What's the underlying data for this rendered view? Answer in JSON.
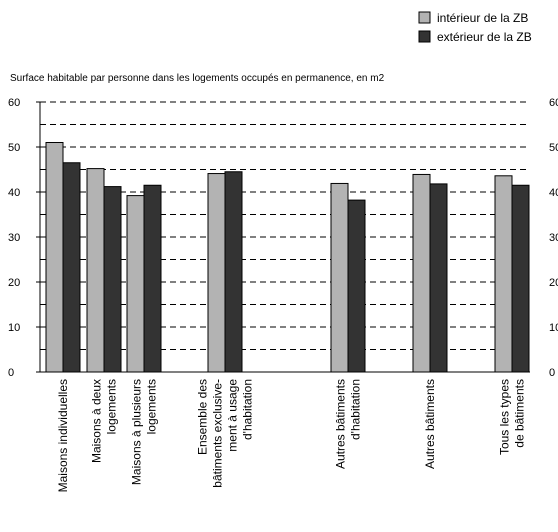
{
  "chart_data": {
    "type": "bar",
    "title": "Surface habitable par personne dans les logements occupés en permanence, en m2",
    "categories": [
      [
        "Maisons individuelles"
      ],
      [
        "Maisons à deux",
        "logements"
      ],
      [
        "Maisons à plusieurs",
        "logements"
      ],
      [
        "Ensemble des",
        "bâtiments exclusive-",
        "ment à usage",
        "d'habitation"
      ],
      [
        "Autres bâtiments",
        "d'habitation"
      ],
      [
        "Autres bâtiments"
      ],
      [
        "Tous les types",
        "de bâtiments"
      ]
    ],
    "series": [
      {
        "name": "intérieur de la ZB",
        "color": "#b3b3b3",
        "values": [
          51,
          45.2,
          39.2,
          44.1,
          41.9,
          43.9,
          43.6
        ]
      },
      {
        "name": "extérieur de la ZB",
        "color": "#333333",
        "values": [
          46.5,
          41.2,
          41.5,
          44.5,
          38.2,
          41.8,
          41.5
        ]
      }
    ],
    "ylim": [
      0,
      60
    ],
    "yticks": [
      0,
      10,
      20,
      30,
      40,
      50,
      60
    ],
    "gridlines_at": [
      5,
      10,
      15,
      20,
      25,
      30,
      35,
      40,
      45,
      50,
      55,
      60
    ],
    "grid": "dashed",
    "legend_position": "top-right",
    "xlabel": "",
    "ylabel": ""
  }
}
